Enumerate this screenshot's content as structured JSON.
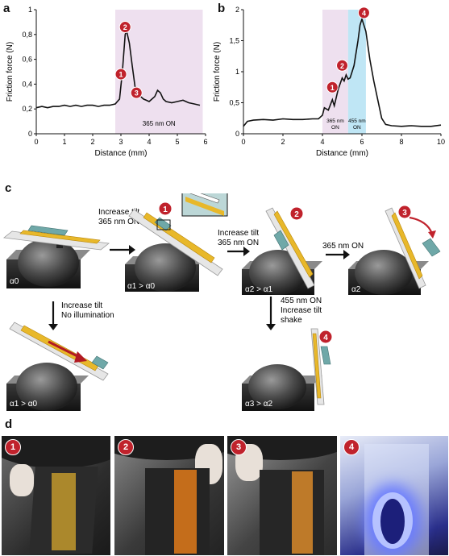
{
  "panels": {
    "a": "a",
    "b": "b",
    "c": "c",
    "d": "d"
  },
  "chart_data": [
    {
      "type": "line",
      "panel": "a",
      "xlabel": "Distance (mm)",
      "ylabel": "Friction force (N)",
      "xlim": [
        0,
        6
      ],
      "ylim": [
        0,
        1
      ],
      "x_ticks": [
        "0",
        "1",
        "2",
        "3",
        "4",
        "5",
        "6"
      ],
      "y_ticks": [
        "0",
        "0,2",
        "0,4",
        "0,6",
        "0,8",
        "1"
      ],
      "regions": [
        {
          "label": "365 nm ON",
          "x_start": 2.8,
          "x_end": 5.9,
          "color": "#eee0ef"
        }
      ],
      "markers": [
        {
          "label": "1",
          "x": 3.0,
          "y": 0.48
        },
        {
          "label": "2",
          "x": 3.15,
          "y": 0.86
        },
        {
          "label": "3",
          "x": 3.55,
          "y": 0.33
        }
      ],
      "series": [
        {
          "x": [
            0,
            0.2,
            0.4,
            0.6,
            0.8,
            1.0,
            1.2,
            1.4,
            1.6,
            1.8,
            2.0,
            2.2,
            2.4,
            2.6,
            2.8,
            2.95,
            3.05,
            3.15,
            3.2,
            3.3,
            3.4,
            3.5,
            3.6,
            3.7,
            3.8,
            3.9,
            4.0,
            4.2,
            4.3,
            4.4,
            4.5,
            4.6,
            4.8,
            5.0,
            5.2,
            5.4,
            5.6,
            5.8
          ],
          "y": [
            0.21,
            0.22,
            0.21,
            0.22,
            0.22,
            0.23,
            0.22,
            0.23,
            0.22,
            0.23,
            0.23,
            0.22,
            0.23,
            0.23,
            0.24,
            0.28,
            0.5,
            0.8,
            0.83,
            0.73,
            0.55,
            0.38,
            0.33,
            0.3,
            0.28,
            0.27,
            0.26,
            0.3,
            0.35,
            0.33,
            0.28,
            0.26,
            0.25,
            0.26,
            0.27,
            0.25,
            0.24,
            0.23
          ]
        }
      ]
    },
    {
      "type": "line",
      "panel": "b",
      "xlabel": "Distance (mm)",
      "ylabel": "Friction force (N)",
      "xlim": [
        0,
        10
      ],
      "ylim": [
        0,
        2
      ],
      "x_ticks": [
        "0",
        "2",
        "4",
        "6",
        "8",
        "10"
      ],
      "y_ticks": [
        "0",
        "0,5",
        "1",
        "1,5",
        "2"
      ],
      "regions": [
        {
          "label": "365 nm ON",
          "x_start": 4.0,
          "x_end": 5.3,
          "color": "#eee0ef"
        },
        {
          "label": "455 nm ON",
          "x_start": 5.3,
          "x_end": 6.2,
          "color": "#bfe6f5"
        }
      ],
      "markers": [
        {
          "label": "1",
          "x": 4.5,
          "y": 0.75
        },
        {
          "label": "2",
          "x": 5.0,
          "y": 1.1
        },
        {
          "label": "4",
          "x": 6.1,
          "y": 1.95
        }
      ],
      "series": [
        {
          "x": [
            0,
            0.2,
            0.5,
            1.0,
            1.5,
            2.0,
            2.5,
            3.0,
            3.5,
            3.8,
            4.0,
            4.1,
            4.3,
            4.5,
            4.6,
            4.8,
            5.0,
            5.1,
            5.2,
            5.3,
            5.4,
            5.5,
            5.6,
            5.8,
            5.9,
            6.0,
            6.2,
            6.4,
            6.6,
            6.8,
            7.0,
            7.2,
            7.5,
            8.0,
            8.5,
            9.0,
            9.5,
            10.0
          ],
          "y": [
            0.12,
            0.2,
            0.22,
            0.23,
            0.22,
            0.24,
            0.23,
            0.23,
            0.24,
            0.24,
            0.3,
            0.42,
            0.38,
            0.55,
            0.45,
            0.72,
            0.9,
            0.85,
            0.95,
            0.88,
            0.9,
            1.0,
            1.1,
            1.5,
            1.75,
            1.85,
            1.65,
            1.2,
            0.85,
            0.55,
            0.25,
            0.15,
            0.13,
            0.12,
            0.13,
            0.12,
            0.12,
            0.14
          ]
        }
      ]
    }
  ],
  "diagram": {
    "steps": [
      {
        "id": "1",
        "text": [
          "Increase tilt",
          "365 nm ON"
        ]
      },
      {
        "id": "2",
        "text": [
          "Increase tilt",
          "365 nm ON"
        ]
      },
      {
        "id": "3",
        "text": [
          "365 nm ON"
        ]
      },
      {
        "id": "4",
        "text": [
          "455 nm ON",
          "Increase tilt",
          "shake"
        ]
      },
      {
        "id": "5",
        "text": [
          "Increase tilt",
          "No illumination"
        ]
      }
    ],
    "angles": [
      "α0",
      "α1 > α0",
      "α2 > α1",
      "α2",
      "α1 > α0",
      "α3 > α2"
    ],
    "badges": [
      "1",
      "2",
      "3",
      "4"
    ]
  },
  "photos": [
    {
      "badge": "1"
    },
    {
      "badge": "2"
    },
    {
      "badge": "3"
    },
    {
      "badge": "4"
    }
  ]
}
